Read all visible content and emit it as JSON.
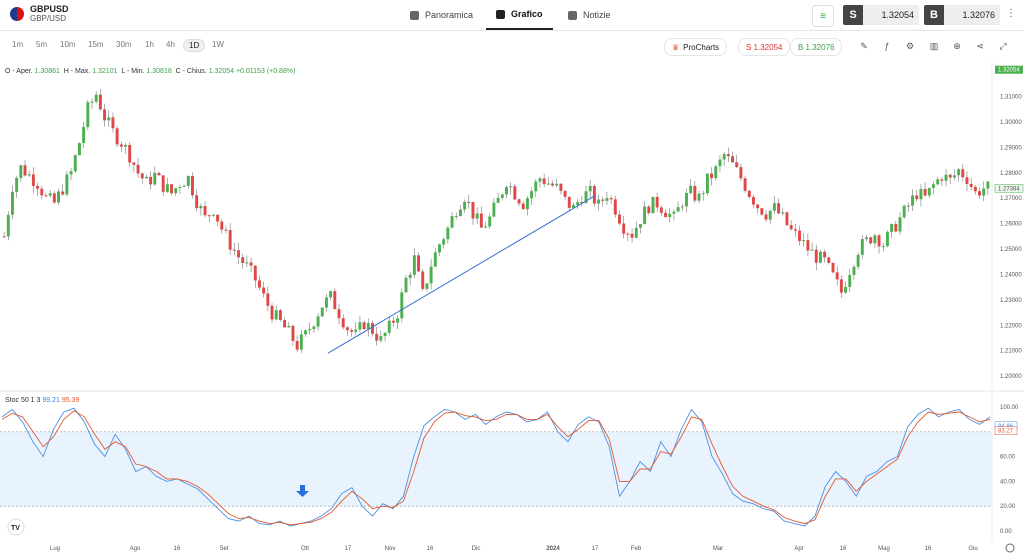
{
  "header": {
    "symbol": "GBPUSD",
    "symbol_sub": "GBP/USD",
    "tabs": [
      {
        "label": "Panoramica",
        "icon": "grid-icon"
      },
      {
        "label": "Grafico",
        "icon": "candles-icon"
      },
      {
        "label": "Notizie",
        "icon": "news-icon"
      }
    ],
    "sell_label": "S",
    "sell_price": "1.32054",
    "buy_label": "B",
    "buy_price": "1.32076"
  },
  "toolbar": {
    "timeframes": [
      "1m",
      "5m",
      "10m",
      "15m",
      "30m",
      "1h",
      "4h",
      "1D",
      "1W"
    ],
    "active_timeframe": "1D",
    "prochart_label": "ProCharts",
    "sell_pill": "S 1.32054",
    "buy_pill": "B 1.32076"
  },
  "ohlc": {
    "o_label": "O - Aper.",
    "o": "1.30861",
    "h_label": "H - Max.",
    "h": "1.32101",
    "l_label": "L - Min.",
    "l": "1.30818",
    "c_label": "C - Chius.",
    "c": "1.32054",
    "chg": "+0.01153",
    "pct": "(+0.88%)"
  },
  "indicator": {
    "name": "Stoc 50 1 3",
    "k": "99.21",
    "d": "95.39"
  },
  "chart_data": {
    "type": "candlestick",
    "price_axis": [
      "1.31000",
      "1.30000",
      "1.29000",
      "1.28000",
      "1.27000",
      "1.26000",
      "1.25000",
      "1.24000",
      "1.23000",
      "1.22000",
      "1.21000",
      "1.20000"
    ],
    "price_range": [
      1.1965,
      1.3165
    ],
    "last_price": "1.32054",
    "marker_price": "1.27384",
    "stoch_axis": [
      "100.00",
      "80.00",
      "60.00",
      "40.00",
      "20.00",
      "0.00"
    ],
    "stoch_markers": {
      "k": "84.86",
      "d": "83.27"
    },
    "x_labels": [
      "Lug",
      "Ago",
      "16",
      "Set",
      "Ott",
      "17",
      "Nov",
      "16",
      "Dic",
      "2024",
      "17",
      "Feb",
      "Mar",
      "Apr",
      "16",
      "Mag",
      "16",
      "Giu"
    ],
    "close_path": [
      1.255,
      1.275,
      1.282,
      1.279,
      1.276,
      1.27,
      1.268,
      1.274,
      1.28,
      1.292,
      1.305,
      1.311,
      1.302,
      1.296,
      1.292,
      1.287,
      1.28,
      1.276,
      1.279,
      1.275,
      1.272,
      1.276,
      1.278,
      1.269,
      1.262,
      1.266,
      1.258,
      1.252,
      1.247,
      1.243,
      1.238,
      1.231,
      1.225,
      1.221,
      1.217,
      1.212,
      1.216,
      1.222,
      1.228,
      1.231,
      1.225,
      1.219,
      1.216,
      1.221,
      1.218,
      1.214,
      1.219,
      1.225,
      1.238,
      1.246,
      1.232,
      1.244,
      1.252,
      1.258,
      1.266,
      1.271,
      1.264,
      1.258,
      1.262,
      1.269,
      1.277,
      1.272,
      1.268,
      1.273,
      1.278,
      1.276,
      1.274,
      1.269,
      1.266,
      1.271,
      1.272,
      1.267,
      1.272,
      1.266,
      1.259,
      1.256,
      1.262,
      1.267,
      1.268,
      1.265,
      1.262,
      1.269,
      1.272,
      1.27,
      1.277,
      1.281,
      1.287,
      1.283,
      1.278,
      1.272,
      1.267,
      1.264,
      1.266,
      1.262,
      1.257,
      1.254,
      1.25,
      1.247,
      1.245,
      1.239,
      1.233,
      1.242,
      1.25,
      1.253,
      1.256,
      1.252,
      1.257,
      1.262,
      1.267,
      1.272,
      1.27,
      1.275,
      1.279,
      1.277,
      1.281,
      1.278,
      1.272,
      1.274
    ],
    "stoch_k": [
      92,
      98,
      88,
      72,
      60,
      82,
      96,
      99,
      88,
      70,
      60,
      78,
      66,
      48,
      52,
      44,
      40,
      42,
      38,
      34,
      26,
      18,
      10,
      8,
      12,
      6,
      5,
      8,
      4,
      6,
      8,
      12,
      18,
      30,
      35,
      20,
      12,
      22,
      18,
      28,
      60,
      85,
      92,
      98,
      96,
      90,
      94,
      86,
      92,
      96,
      94,
      88,
      90,
      96,
      80,
      72,
      86,
      92,
      88,
      68,
      28,
      40,
      56,
      48,
      72,
      60,
      82,
      98,
      88,
      60,
      46,
      30,
      24,
      22,
      18,
      16,
      8,
      6,
      4,
      12,
      36,
      48,
      40,
      28,
      44,
      48,
      56,
      60,
      84,
      94,
      99,
      92,
      96,
      98,
      90,
      86,
      92
    ],
    "stoch_d": [
      90,
      95,
      92,
      80,
      68,
      76,
      90,
      97,
      92,
      78,
      66,
      72,
      68,
      54,
      52,
      48,
      42,
      42,
      40,
      36,
      30,
      22,
      14,
      10,
      11,
      8,
      6,
      7,
      5,
      6,
      7,
      10,
      15,
      24,
      32,
      26,
      18,
      20,
      19,
      24,
      48,
      75,
      88,
      95,
      96,
      93,
      92,
      89,
      90,
      94,
      94,
      90,
      90,
      94,
      84,
      76,
      82,
      89,
      89,
      74,
      40,
      40,
      50,
      50,
      64,
      62,
      76,
      92,
      90,
      70,
      52,
      36,
      28,
      24,
      20,
      17,
      11,
      8,
      6,
      9,
      28,
      42,
      42,
      32,
      40,
      46,
      52,
      58,
      76,
      88,
      96,
      94,
      95,
      96,
      92,
      88,
      90
    ],
    "trendline": {
      "from": [
        1.209
      ],
      "to": [
        1.271
      ]
    }
  }
}
